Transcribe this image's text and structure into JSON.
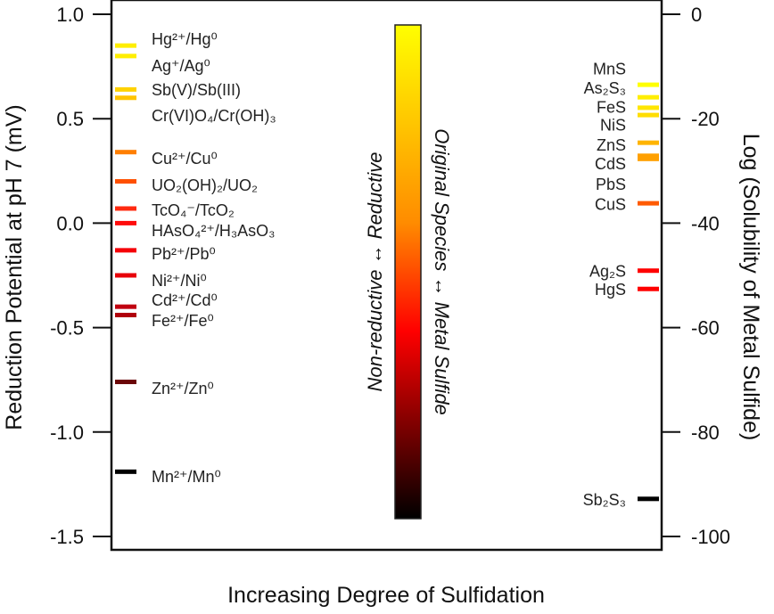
{
  "chart_data": {
    "type": "scatter",
    "title": "",
    "xlabel": "Increasing Degree of Sulfidation",
    "ylabel_left": "Reduction Potential at pH 7 (mV)",
    "ylabel_right": "Log (Solubility of Metal Sulfide)",
    "left_axis": {
      "ylim": [
        -1.5,
        1.0
      ],
      "ticks": [
        1.0,
        0.5,
        0.0,
        -0.5,
        -1.0,
        -1.5
      ],
      "tick_labels": [
        "1.0",
        "0.5",
        "0.0",
        "-0.5",
        "-1.0",
        "-1.5"
      ]
    },
    "right_axis": {
      "ylim": [
        -100,
        0
      ],
      "ticks": [
        0,
        -20,
        -40,
        -60,
        -80,
        -100
      ],
      "tick_labels": [
        "0",
        "-20",
        "-40",
        "-60",
        "-80",
        "-100"
      ]
    },
    "redox_couples": [
      {
        "label": "Hg²⁺/Hg⁰",
        "value": 0.85,
        "color": "#ffee00"
      },
      {
        "label": "Ag⁺/Ag⁰",
        "value": 0.8,
        "color": "#ffee00"
      },
      {
        "label": "Sb(V)/Sb(III)",
        "value": 0.64,
        "color": "#ffd200"
      },
      {
        "label": "Cr(VI)O₄/Cr(OH)₃",
        "value": 0.6,
        "color": "#ffc400"
      },
      {
        "label": "Cu²⁺/Cu⁰",
        "value": 0.34,
        "color": "#ff7f00"
      },
      {
        "label": "UO₂(OH)₂/UO₂",
        "value": 0.2,
        "color": "#ff5000"
      },
      {
        "label": "TcO₄⁻/TcO₂",
        "value": 0.07,
        "color": "#ff2a10"
      },
      {
        "label": "HAsO₄²⁺/H₃AsO₃",
        "value": 0.0,
        "color": "#ff0c0c"
      },
      {
        "label": "Pb²⁺/Pb⁰",
        "value": -0.13,
        "color": "#f50008"
      },
      {
        "label": "Ni²⁺/Ni⁰",
        "value": -0.25,
        "color": "#e8000a"
      },
      {
        "label": "Cd²⁺/Cd⁰",
        "value": -0.4,
        "color": "#c00010"
      },
      {
        "label": "Fe²⁺/Fe⁰",
        "value": -0.44,
        "color": "#b0000c"
      },
      {
        "label": "Zn²⁺/Zn⁰",
        "value": -0.76,
        "color": "#6a0608"
      },
      {
        "label": "Mn²⁺/Mn⁰",
        "value": -1.19,
        "color": "#000000"
      }
    ],
    "sulfide_solubility_bars": [
      {
        "value": -13.5,
        "color": "#ffff00"
      },
      {
        "value": -15.9,
        "color": "#ffee00"
      },
      {
        "value": -17.9,
        "color": "#ffe600"
      },
      {
        "value": -19.3,
        "color": "#ffdd00"
      },
      {
        "value": -24.6,
        "color": "#ffb400"
      },
      {
        "value": -27.1,
        "color": "#ffa000"
      },
      {
        "value": -27.7,
        "color": "#ffa000"
      },
      {
        "value": -36.2,
        "color": "#ff5a00"
      },
      {
        "value": -49.1,
        "color": "#ff0000"
      },
      {
        "value": -52.6,
        "color": "#ff0000"
      },
      {
        "value": -92.8,
        "color": "#000000"
      }
    ],
    "sulfide_labels": [
      {
        "label": "MnS",
        "value": -10.3
      },
      {
        "label": "As₂S₃",
        "value": -14.0
      },
      {
        "label": "FeS",
        "value": -17.7
      },
      {
        "label": "NiS",
        "value": -21.1
      },
      {
        "label": "ZnS",
        "value": -24.9
      },
      {
        "label": "CdS",
        "value": -28.5
      },
      {
        "label": "PbS",
        "value": -32.4
      },
      {
        "label": "CuS",
        "value": -36.3
      },
      {
        "label": "Ag₂S",
        "value": -49.1
      },
      {
        "label": "HgS",
        "value": -52.6
      },
      {
        "label": "Sb₂S₃",
        "value": -92.8
      }
    ],
    "colorbar": {
      "from_color": "#ffff00",
      "mid_color_1": "#ff8c00",
      "mid_color_2": "#ff0000",
      "to_color": "#000000",
      "left_caption": "Non-reductive ↔ Reductive",
      "right_caption": "Original Species ↔ Metal Sulfide"
    },
    "grid": false,
    "legend": "none"
  }
}
